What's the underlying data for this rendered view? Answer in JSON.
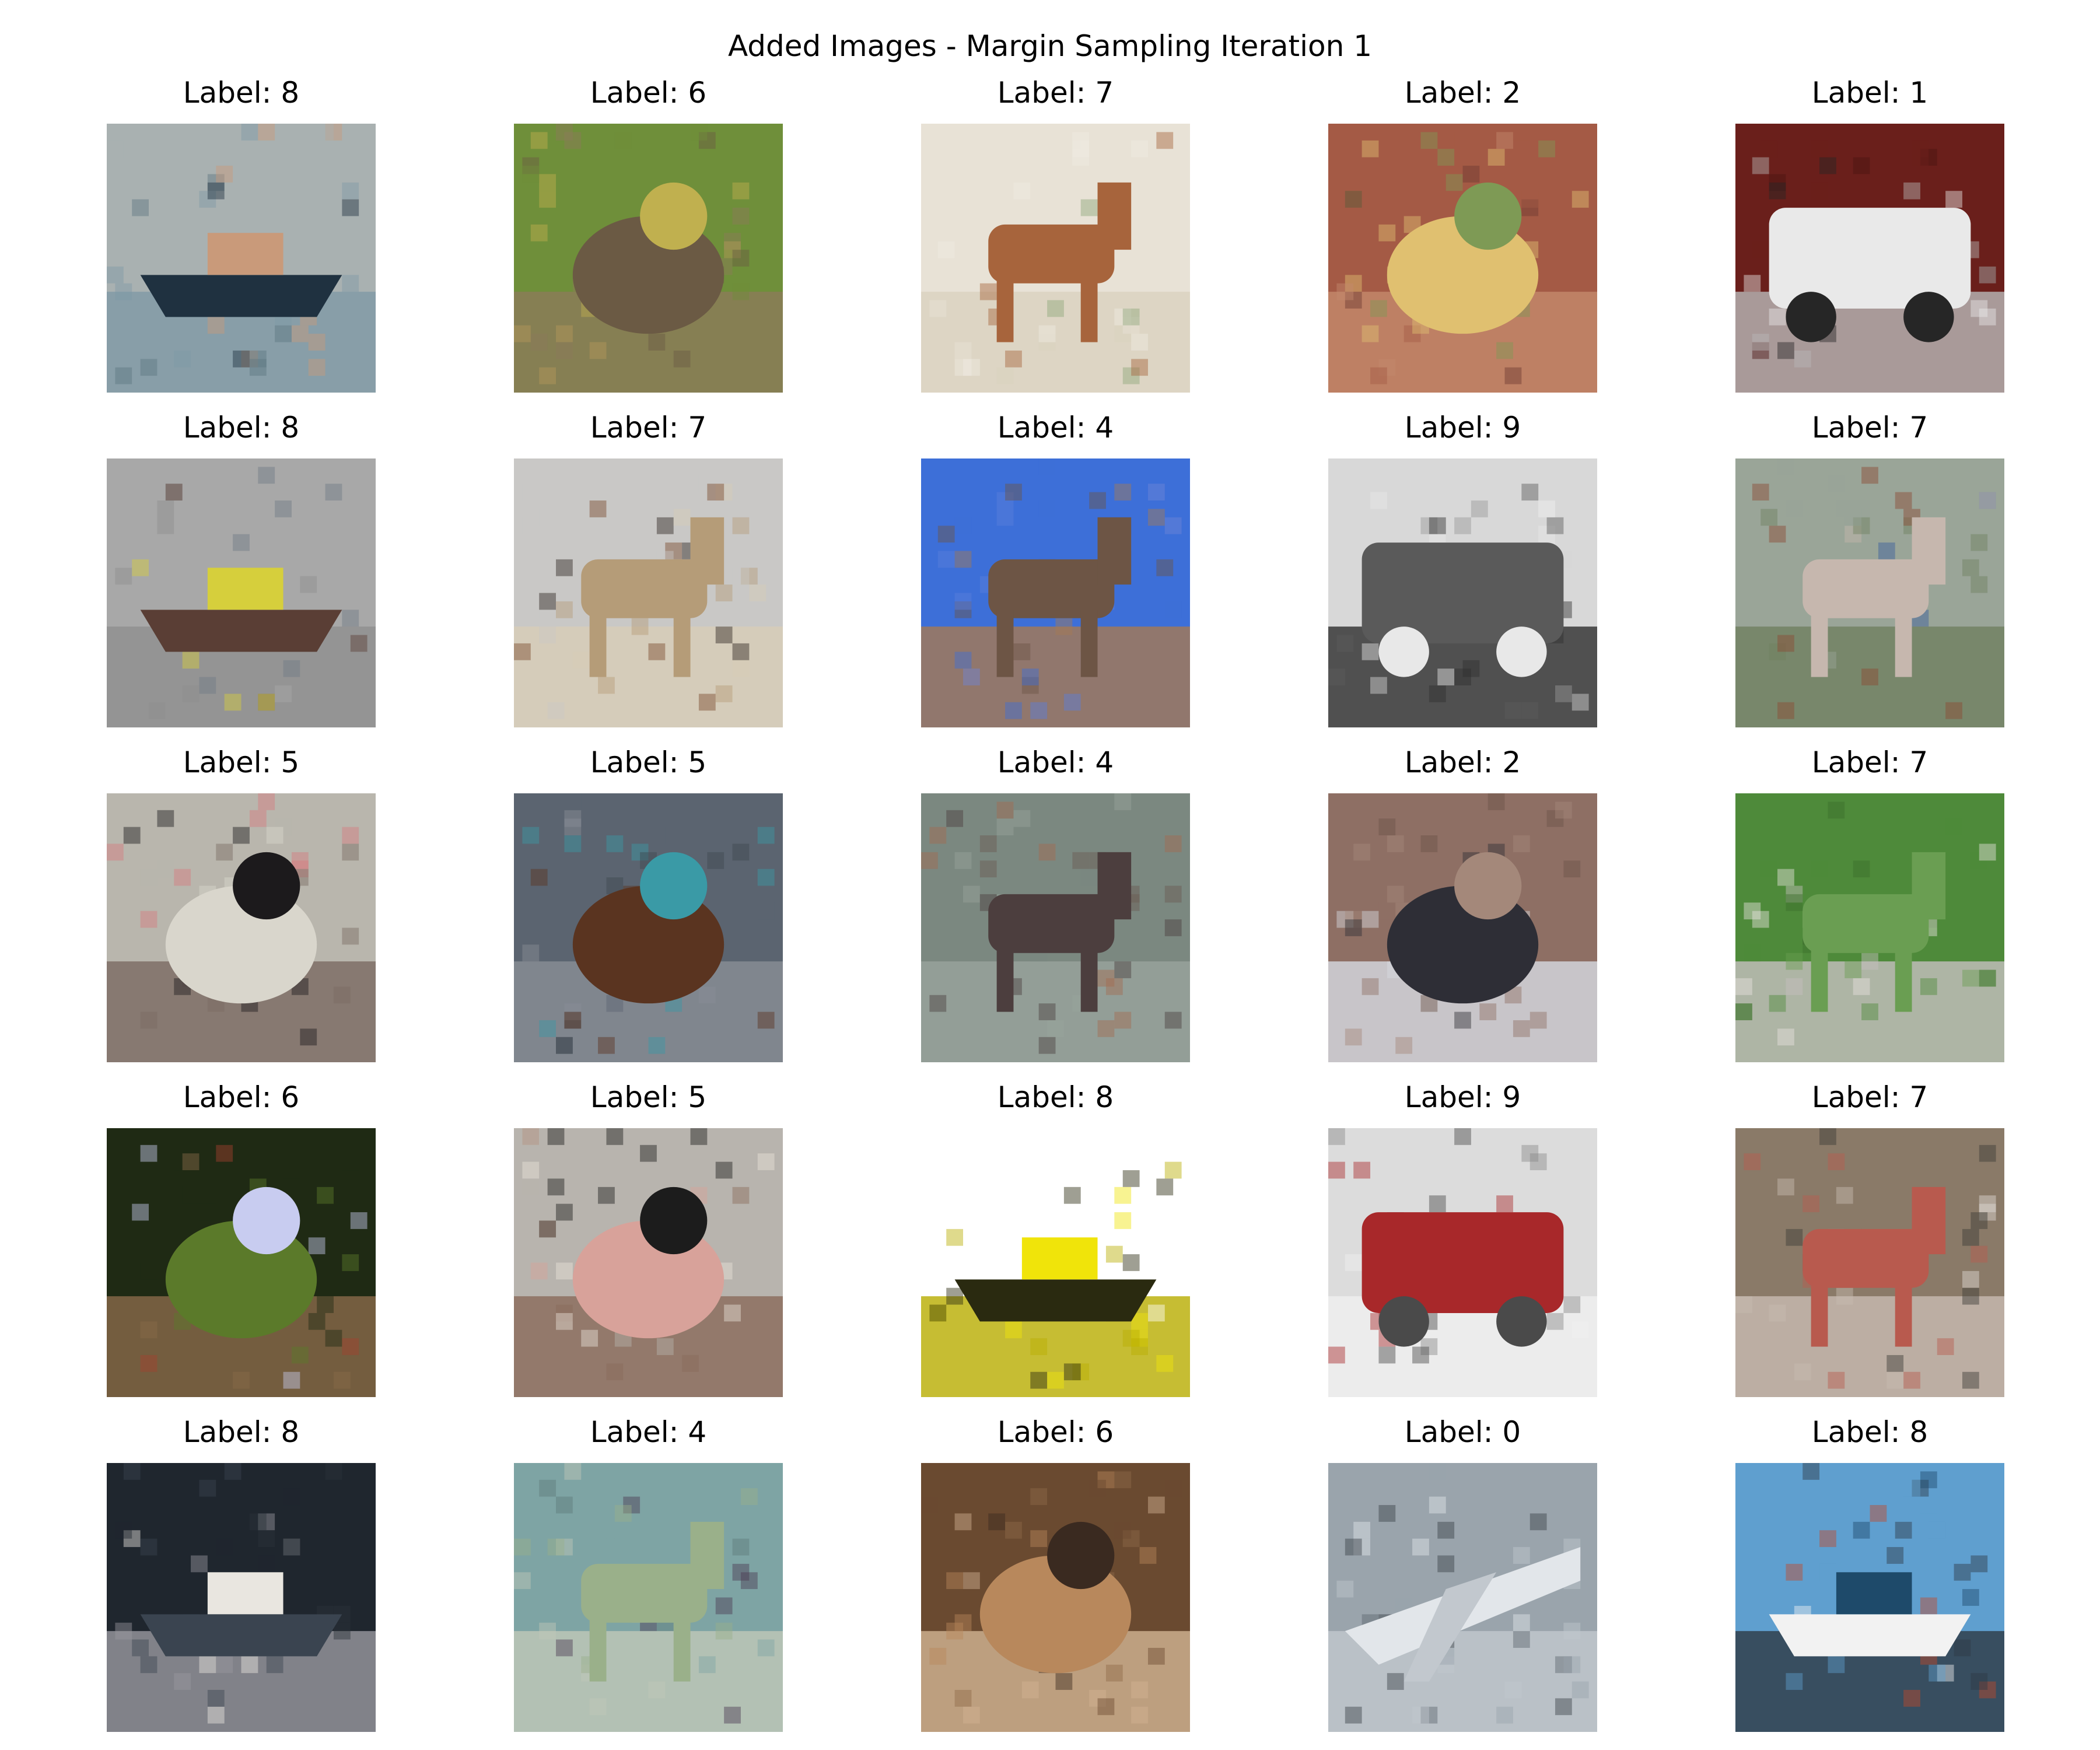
{
  "title": "Added Images - Margin Sampling Iteration 1",
  "images": [
    {
      "label": "Label: 8",
      "subject": "ship",
      "colors": [
        "#a9b1b1",
        "#c99a7a",
        "#1f3140",
        "#7f9aa6",
        "#5e7580"
      ]
    },
    {
      "label": "Label: 6",
      "subject": "frog",
      "colors": [
        "#6f8f3a",
        "#c0b04f",
        "#6b5a44",
        "#8c7a5a",
        "#b59a5c"
      ]
    },
    {
      "label": "Label: 7",
      "subject": "horse",
      "colors": [
        "#e8e2d6",
        "#8da77a",
        "#a7643c",
        "#d9d2bf",
        "#f0ece2"
      ]
    },
    {
      "label": "Label: 2",
      "subject": "bird",
      "colors": [
        "#a45a45",
        "#7e9a55",
        "#e0c070",
        "#c48a6c",
        "#6c3a30"
      ]
    },
    {
      "label": "Label: 1",
      "subject": "automobile",
      "colors": [
        "#6a1f1b",
        "#e9e9e9",
        "#262626",
        "#b9b9b9",
        "#4a1512"
      ]
    },
    {
      "label": "Label: 8",
      "subject": "ship",
      "colors": [
        "#a8a8a8",
        "#d6cf3c",
        "#5a3e35",
        "#8e8e8e",
        "#6f7a86"
      ]
    },
    {
      "label": "Label: 7",
      "subject": "horse",
      "colors": [
        "#c9c8c6",
        "#7a4a2c",
        "#b59c78",
        "#d8cdb6",
        "#2e2622"
      ]
    },
    {
      "label": "Label: 4",
      "subject": "deer",
      "colors": [
        "#3d6fd8",
        "#6e86d8",
        "#6d5545",
        "#a67952",
        "#5b7fdc"
      ]
    },
    {
      "label": "Label: 9",
      "subject": "truck",
      "colors": [
        "#d8d8d8",
        "#5a5a5a",
        "#e8e8e8",
        "#2e2e2e",
        "#9a9a9a"
      ]
    },
    {
      "label": "Label: 7",
      "subject": "horse",
      "colors": [
        "#9aa598",
        "#8b4a32",
        "#c6b7ae",
        "#6f8060",
        "#3a5e9e"
      ]
    },
    {
      "label": "Label: 5",
      "subject": "dog",
      "colors": [
        "#b9b6ad",
        "#1c1a1c",
        "#d9d6cc",
        "#7a6a62",
        "#d77a7e"
      ]
    },
    {
      "label": "Label: 5",
      "subject": "dog",
      "colors": [
        "#5b6470",
        "#3a9aa6",
        "#5a3420",
        "#8a8e96",
        "#3e4650"
      ]
    },
    {
      "label": "Label: 4",
      "subject": "deer",
      "colors": [
        "#7b8880",
        "#6a5a52",
        "#4c3e3e",
        "#9aa49c",
        "#a46a50"
      ]
    },
    {
      "label": "Label: 2",
      "subject": "bird",
      "colors": [
        "#8e6f64",
        "#a4887a",
        "#2e2e36",
        "#d7dbe2",
        "#6a5248"
      ]
    },
    {
      "label": "Label: 7",
      "subject": "horse",
      "colors": [
        "#4e8a3a",
        "#e8e2e0",
        "#6a9e52",
        "#c7bfc0",
        "#3b6d2c"
      ]
    },
    {
      "label": "Label: 6",
      "subject": "frog",
      "colors": [
        "#1f2a14",
        "#c8ccf0",
        "#5b7a2a",
        "#8a6a4a",
        "#a4402e"
      ]
    },
    {
      "label": "Label: 5",
      "subject": "dog",
      "colors": [
        "#b8b4ae",
        "#1c1c1c",
        "#d8a29a",
        "#8a6a5a",
        "#e9e2da"
      ]
    },
    {
      "label": "Label: 8",
      "subject": "ship",
      "colors": [
        "#ffffff",
        "#f0e40a",
        "#2a2a10",
        "#b8ac00",
        "#ffffff"
      ]
    },
    {
      "label": "Label: 9",
      "subject": "truck",
      "colors": [
        "#dcdcdc",
        "#a8282a",
        "#4a4a4a",
        "#f0f0f0",
        "#8a8a8a"
      ]
    },
    {
      "label": "Label: 7",
      "subject": "horse",
      "colors": [
        "#8a7a68",
        "#3a3a36",
        "#b85a4e",
        "#c8bcb2",
        "#e0dcd8"
      ]
    },
    {
      "label": "Label: 8",
      "subject": "ship",
      "colors": [
        "#1f262e",
        "#e9e6e0",
        "#3a4450",
        "#9a9aa0",
        "#2a323a"
      ]
    },
    {
      "label": "Label: 4",
      "subject": "deer",
      "colors": [
        "#7ea4a4",
        "#4c3a52",
        "#9ab08a",
        "#c0c8b8",
        "#5e7a7a"
      ]
    },
    {
      "label": "Label: 6",
      "subject": "frog",
      "colors": [
        "#6a4a30",
        "#3a2a20",
        "#b8885c",
        "#d2b494",
        "#8e6a4a"
      ]
    },
    {
      "label": "Label: 0",
      "subject": "airplane",
      "colors": [
        "#9aa4ac",
        "#e2e6ea",
        "#3a4048",
        "#c2c8ce",
        "#5e666e"
      ]
    },
    {
      "label": "Label: 8",
      "subject": "ship",
      "colors": [
        "#5f9fcf",
        "#1e4a6a",
        "#f2f2f2",
        "#2e3a44",
        "#c04a2a"
      ]
    }
  ]
}
